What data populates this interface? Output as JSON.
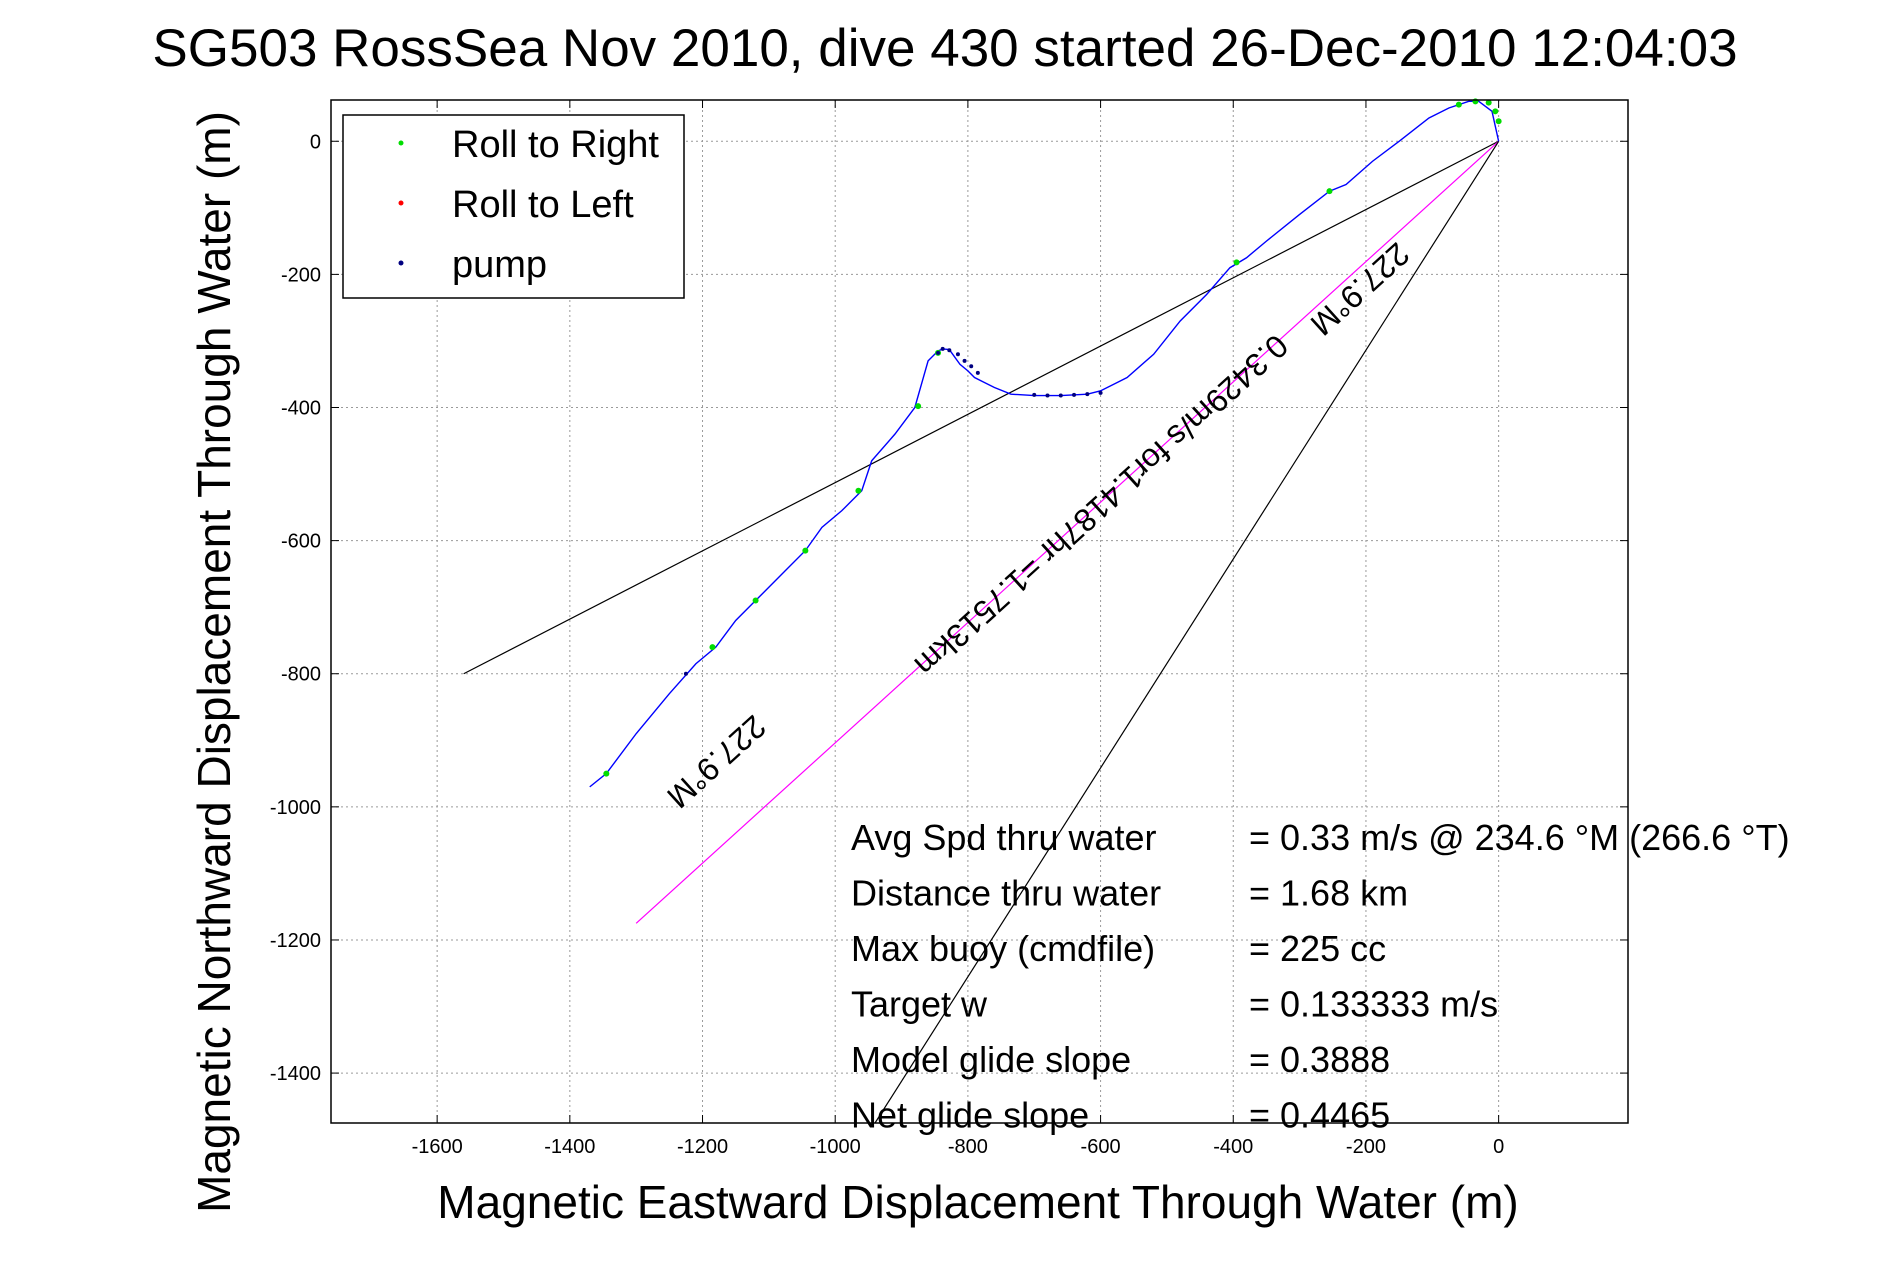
{
  "chart_data": {
    "type": "scatter",
    "title": "SG503 RossSea Nov 2010, dive 430 started 26-Dec-2010 12:04:03",
    "xlabel": "Magnetic Eastward Displacement Through Water (m)",
    "ylabel": "Magnetic Northward Displacement Through Water (m)",
    "xlim": [
      -1760,
      195
    ],
    "ylim": [
      -1475,
      62
    ],
    "x_ticks": [
      "-1600",
      "-1400",
      "-1200",
      "-1000",
      "-800",
      "-600",
      "-400",
      "-200",
      "0"
    ],
    "y_ticks": [
      "0",
      "-200",
      "-400",
      "-600",
      "-800",
      "-1000",
      "-1200",
      "-1400"
    ],
    "x_tick_values": [
      -1600,
      -1400,
      -1200,
      -1000,
      -800,
      -600,
      -400,
      -200,
      0
    ],
    "y_tick_values": [
      0,
      -200,
      -400,
      -600,
      -800,
      -1000,
      -1200,
      -1400
    ],
    "grid": true,
    "legend": {
      "placement": "top-left",
      "entries": [
        {
          "name": "Roll to Right",
          "color": "#00dd00"
        },
        {
          "name": "Roll to Left",
          "color": "#ff0000"
        },
        {
          "name": "pump",
          "color": "#000080"
        }
      ]
    },
    "track": {
      "color": "#0000ff",
      "x": [
        -1370,
        -1345,
        -1300,
        -1250,
        -1210,
        -1180,
        -1150,
        -1120,
        -1080,
        -1045,
        -1020,
        -990,
        -960,
        -945,
        -910,
        -880,
        -860,
        -845,
        -838,
        -828,
        -812,
        -800,
        -790,
        -760,
        -735,
        -700,
        -660,
        -620,
        -600,
        -560,
        -520,
        -480,
        -440,
        -405,
        -380,
        -350,
        -300,
        -255,
        -230,
        -190,
        -150,
        -105,
        -75,
        -45,
        -30,
        -10,
        0
      ],
      "y": [
        -970,
        -950,
        -890,
        -830,
        -785,
        -760,
        -720,
        -690,
        -650,
        -615,
        -580,
        -555,
        -525,
        -480,
        -440,
        -400,
        -330,
        -315,
        -312,
        -313,
        -335,
        -345,
        -355,
        -370,
        -380,
        -382,
        -382,
        -380,
        -375,
        -355,
        -320,
        -270,
        -230,
        -190,
        -175,
        -150,
        -110,
        -75,
        -65,
        -30,
        0,
        35,
        50,
        60,
        60,
        45,
        0
      ]
    },
    "roll_right_x": [
      -1345,
      -1185,
      -1120,
      -1045,
      -965,
      -875,
      -845,
      -395,
      -255,
      -60,
      -35,
      -15,
      -5,
      0
    ],
    "roll_right_y": [
      -950,
      -760,
      -690,
      -615,
      -525,
      -398,
      -318,
      -182,
      -75,
      55,
      60,
      58,
      45,
      30
    ],
    "pump_x": [
      -1225,
      -845,
      -838,
      -828,
      -815,
      -805,
      -795,
      -785,
      -700,
      -680,
      -660,
      -640,
      -620,
      -600
    ],
    "pump_y": [
      -800,
      -318,
      -312,
      -314,
      -320,
      -330,
      -338,
      -348,
      -381,
      -382,
      -382,
      -381,
      -380,
      -378
    ],
    "lines": [
      {
        "x": [
          0,
          -1560
        ],
        "y": [
          0,
          -800
        ],
        "color": "#000000"
      },
      {
        "x": [
          0,
          -1300
        ],
        "y": [
          0,
          -1175
        ],
        "color": "#ff00ff"
      },
      {
        "x": [
          -940,
          0
        ],
        "y": [
          -1475,
          0
        ],
        "color": "#000000"
      }
    ],
    "rotated_labels": [
      {
        "text": "227.9°M",
        "x": -1190,
        "y": -920,
        "angle": 137.8
      },
      {
        "text": "227.9°M",
        "x": -220,
        "y": -210,
        "angle": 137.8
      },
      {
        "text": "0.3429m/s for1.4187hr =1.7513km",
        "x": -610,
        "y": -535,
        "angle": 137.8
      }
    ],
    "stats": [
      {
        "label": "Avg Spd thru water",
        "value": "=  0.33 m/s @ 234.6 °M (266.6 °T)"
      },
      {
        "label": "Distance thru water",
        "value": "=  1.68 km"
      },
      {
        "label": "Max buoy (cmdfile)",
        "value": "= 225 cc"
      },
      {
        "label": "Target w",
        "value": "= 0.133333 m/s"
      },
      {
        "label": "Model glide slope",
        "value": "= 0.3888"
      },
      {
        "label": "Net glide slope",
        "value": "= 0.4465"
      }
    ]
  }
}
